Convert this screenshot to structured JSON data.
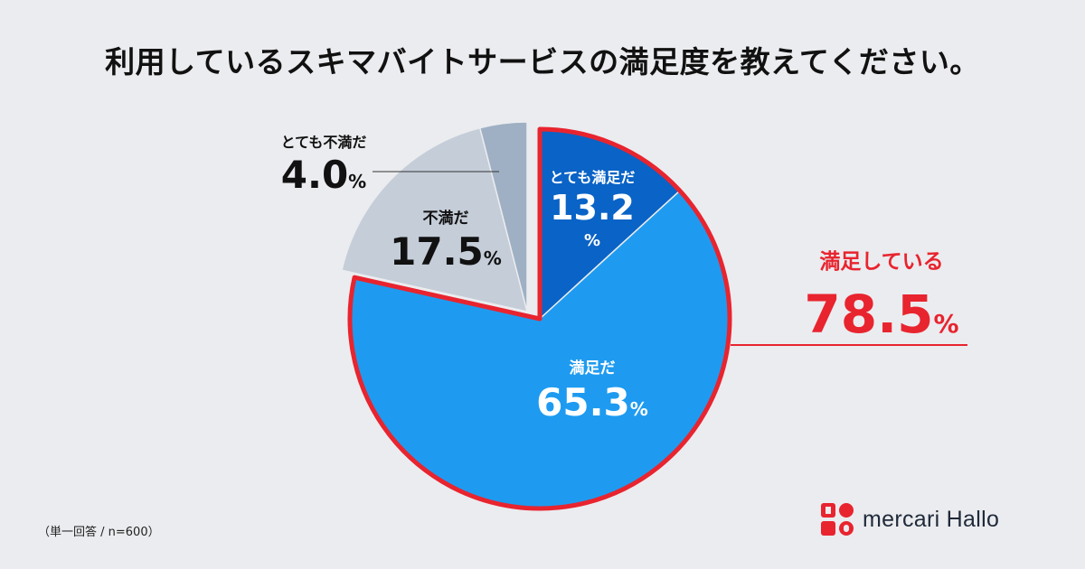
{
  "title": "利用しているスキマバイトサービスの満足度を教えてください。",
  "footnote": "（単一回答 / n=600）",
  "brand": {
    "name": "mercari Hallo"
  },
  "colors": {
    "very_satisfied": "#0a63c6",
    "satisfied": "#1e9bf0",
    "dissatisfied": "#c5cdd8",
    "very_dissatisfied": "#9fb0c4",
    "highlight": "#e8242f"
  },
  "chart_data": {
    "type": "pie",
    "title": "利用しているスキマバイトサービスの満足度を教えてください。",
    "slices": [
      {
        "label": "とても満足だ",
        "value": 13.2,
        "value_text": "13.2",
        "unit": "%"
      },
      {
        "label": "満足だ",
        "value": 65.3,
        "value_text": "65.3",
        "unit": "%"
      },
      {
        "label": "不満だ",
        "value": 17.5,
        "value_text": "17.5",
        "unit": "%"
      },
      {
        "label": "とても不満だ",
        "value": 4.0,
        "value_text": "4.0",
        "unit": "%"
      }
    ],
    "highlight_group": {
      "label": "満足している",
      "value": 78.5,
      "value_text": "78.5",
      "unit": "%"
    }
  }
}
